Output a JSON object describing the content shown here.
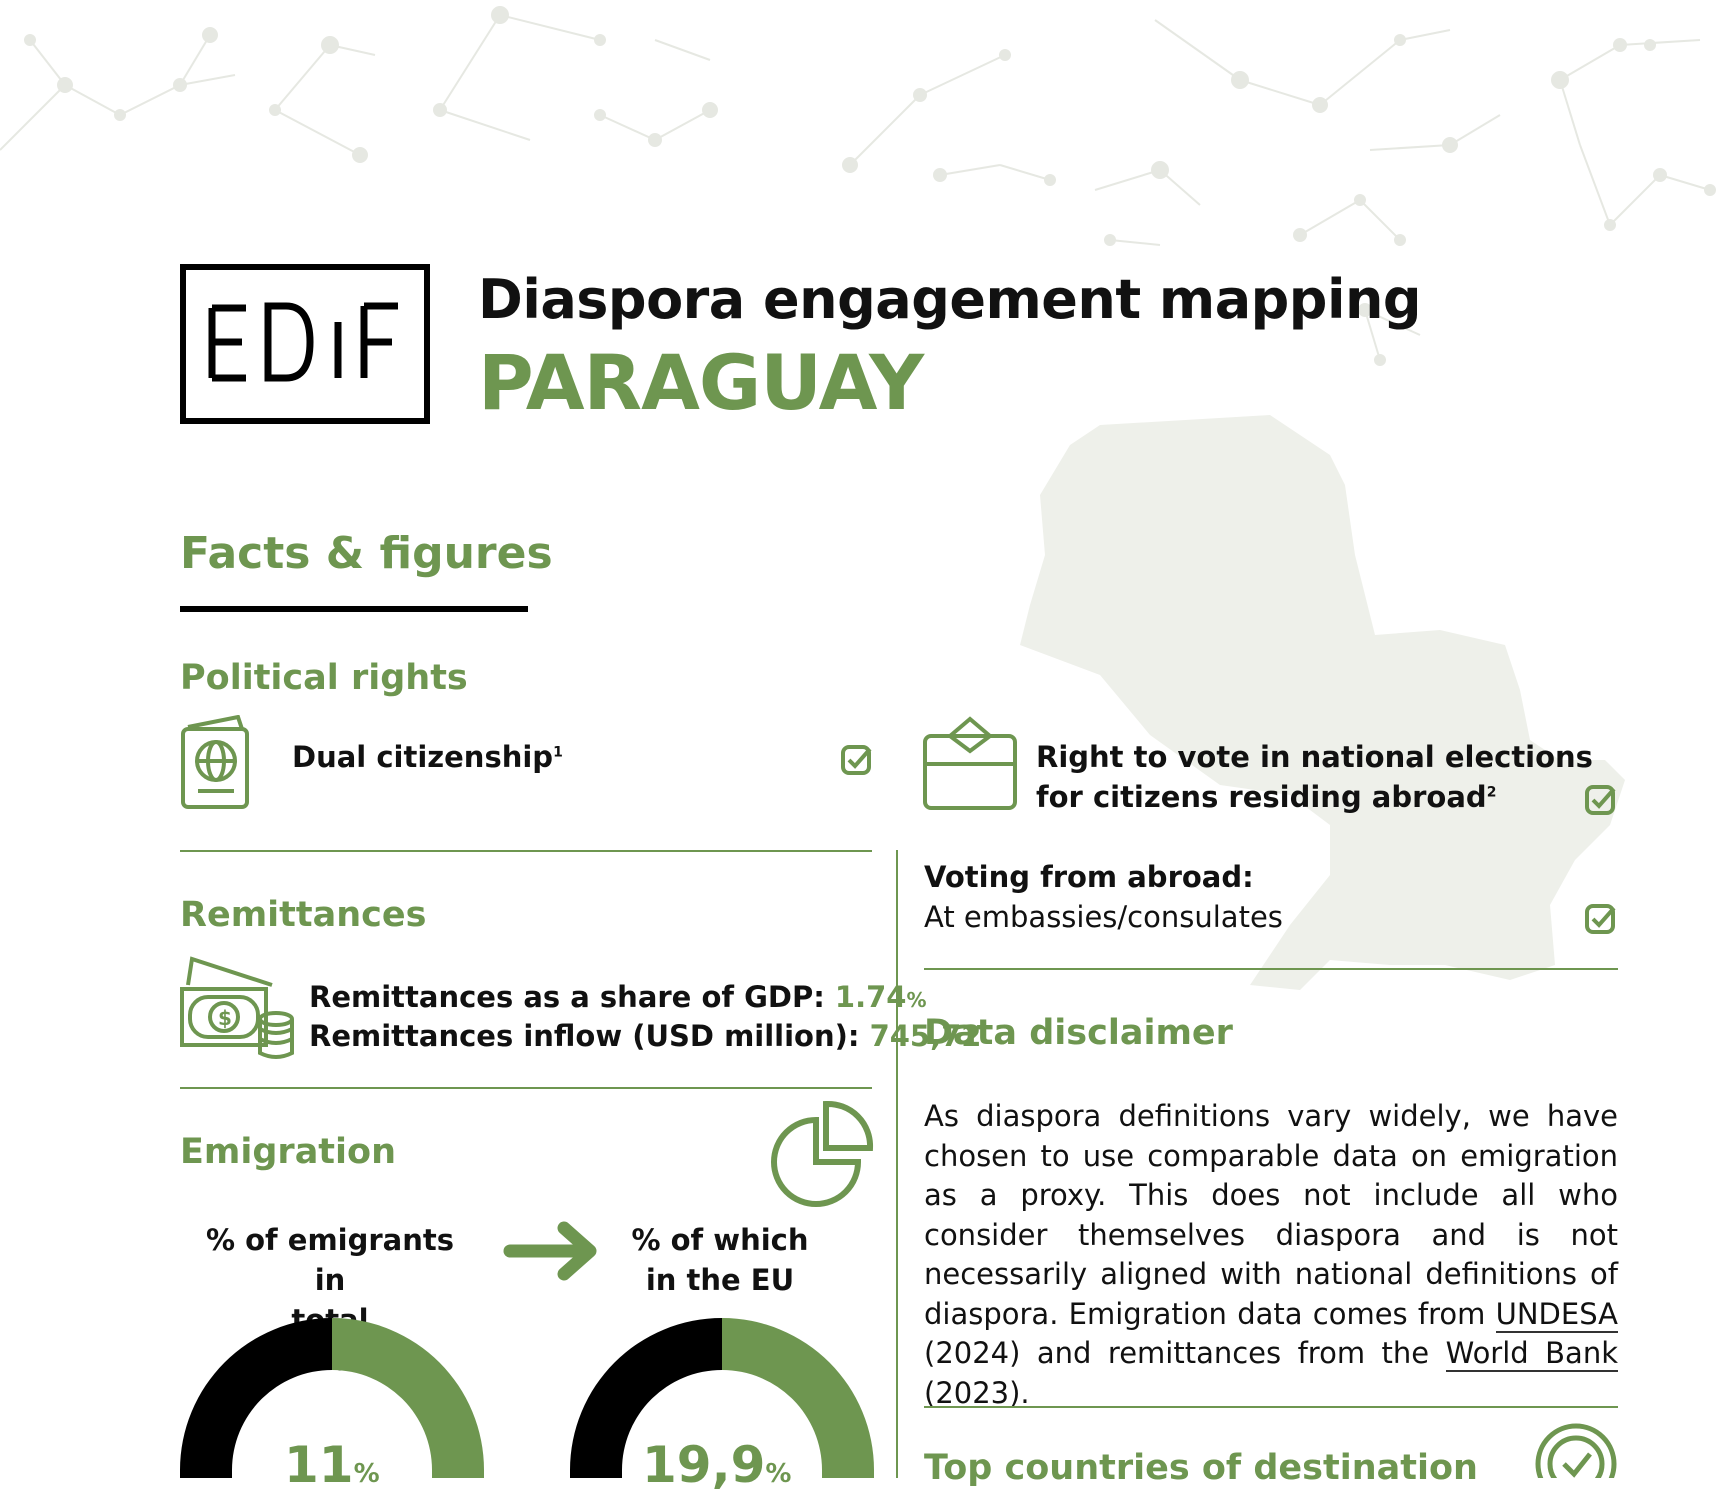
{
  "header": {
    "logo_text": "EUDiF",
    "title": "Diaspora engagement mapping",
    "country": "PARAGUAY"
  },
  "section_title": "Facts & figures",
  "political_rights": {
    "heading": "Political rights",
    "dual_citizenship": {
      "label": "Dual citizenship",
      "footnote": "1",
      "checked": true,
      "icon": "passport-icon"
    },
    "right_to_vote": {
      "line1": "Right to vote in national elections",
      "line2": "for citizens residing abroad",
      "footnote": "2",
      "checked": true,
      "icon": "ballot-box-icon"
    },
    "voting_from_abroad": {
      "label": "Voting from abroad:",
      "value": "At embassies/consulates",
      "checked": true
    }
  },
  "remittances": {
    "heading": "Remittances",
    "icon": "money-icon",
    "gdp_share_label": "Remittances as a share of GDP:",
    "gdp_share_value": "1.74",
    "gdp_share_unit": "%",
    "inflow_label": "Remittances inflow (USD million):",
    "inflow_value": "745,72"
  },
  "emigration": {
    "heading": "Emigration",
    "icon": "pie-chart-icon",
    "arrow_icon": "arrow-right-icon",
    "total_label_line1": "% of emigrants in",
    "total_label_line2": "total population",
    "total_value": "11",
    "total_fraction": 0.11,
    "eu_label_line1": "% of which",
    "eu_label_line2": "in the EU",
    "eu_value": "19,9",
    "eu_fraction": 0.199,
    "unit": "%"
  },
  "data_disclaimer": {
    "heading": "Data disclaimer",
    "text_before_undesa": "As diaspora definitions vary widely, we have chosen to use comparable data on emigration as a proxy. This does not include all who consider themselves diaspora and is not necessarily aligned with national definitions of diaspora. Emigration data comes from ",
    "undesa": "UNDESA",
    "text_middle": " (2024) and remittances from the ",
    "world_bank": "World Bank",
    "text_end": " (2023)."
  },
  "top_countries": {
    "heading": "Top countries of destination",
    "icon": "check-circle-icon"
  },
  "colors": {
    "accent": "#6e9650",
    "dark": "#111111",
    "map": "#eef0ea",
    "network": "#eceee8"
  }
}
